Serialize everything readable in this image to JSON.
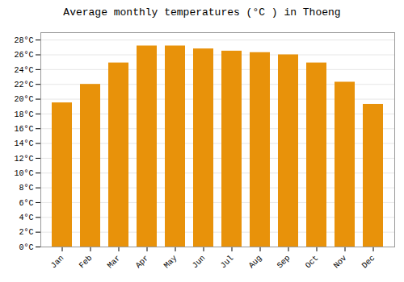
{
  "chart_data": {
    "type": "bar",
    "title": "Average monthly temperatures (°C ) in Thoeng",
    "categories": [
      "Jan",
      "Feb",
      "Mar",
      "Apr",
      "May",
      "Jun",
      "Jul",
      "Aug",
      "Sep",
      "Oct",
      "Nov",
      "Dec"
    ],
    "values": [
      19.5,
      22.0,
      24.9,
      27.2,
      27.2,
      26.8,
      26.5,
      26.3,
      26.0,
      24.9,
      22.3,
      19.3
    ],
    "color": "#E8920A",
    "ylim": [
      0,
      29
    ],
    "yticks": [
      {
        "value": 0,
        "label": "0°C"
      },
      {
        "value": 2,
        "label": "2°C"
      },
      {
        "value": 4,
        "label": "4°C"
      },
      {
        "value": 6,
        "label": "6°C"
      },
      {
        "value": 8,
        "label": "8°C"
      },
      {
        "value": 10,
        "label": "10°C"
      },
      {
        "value": 12,
        "label": "12°C"
      },
      {
        "value": 14,
        "label": "14°C"
      },
      {
        "value": 16,
        "label": "16°C"
      },
      {
        "value": 18,
        "label": "18°C"
      },
      {
        "value": 20,
        "label": "20°C"
      },
      {
        "value": 22,
        "label": "22°C"
      },
      {
        "value": 24,
        "label": "24°C"
      },
      {
        "value": 26,
        "label": "26°C"
      },
      {
        "value": 28,
        "label": "28°C"
      }
    ],
    "grid": true
  }
}
